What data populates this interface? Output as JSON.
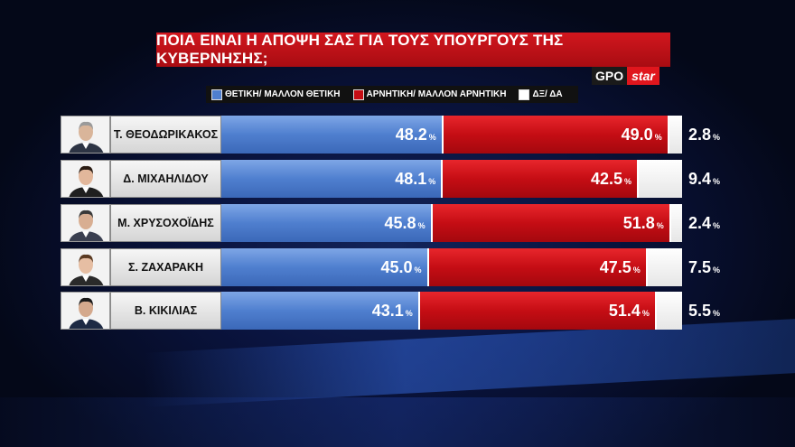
{
  "title": "ΠΟΙΑ ΕΙΝΑΙ Η ΑΠΟΨΗ ΣΑΣ ΓΙΑ ΤΟΥΣ ΥΠΟΥΡΓΟΥΣ ΤΗΣ ΚΥΒΕΡΝΗΣΗΣ;",
  "logo": {
    "left": "GPO",
    "right": "star"
  },
  "colors": {
    "positive": "#4f7fcf",
    "negative": "#c50d14",
    "dont_know": "#ffffff",
    "title_bg": "#d2171e"
  },
  "percent_sign": "%",
  "chart_data": {
    "type": "bar",
    "stacked": true,
    "orientation": "horizontal",
    "title": "ΠΟΙΑ ΕΙΝΑΙ Η ΑΠΟΨΗ ΣΑΣ ΓΙΑ ΤΟΥΣ ΥΠΟΥΡΓΟΥΣ ΤΗΣ ΚΥΒΕΡΝΗΣΗΣ;",
    "legend_position": "top",
    "categories": [
      "Τ. ΘΕΟΔΩΡΙΚΑΚΟΣ",
      "Δ. ΜΙΧΑΗΛΙΔΟΥ",
      "Μ. ΧΡΥΣΟΧΟΪΔΗΣ",
      "Σ. ΖΑΧΑΡΑΚΗ",
      "Β. ΚΙΚΙΛΙΑΣ"
    ],
    "series": [
      {
        "name": "ΘΕΤΙΚΗ/ ΜΑΛΛΟΝ ΘΕΤΙΚΗ",
        "key": "pos",
        "values": [
          48.2,
          48.1,
          45.8,
          45.0,
          43.1
        ]
      },
      {
        "name": "ΑΡΝΗΤΙΚΗ/ ΜΑΛΛΟΝ ΑΡΝΗΤΙΚΗ",
        "key": "neg",
        "values": [
          49.0,
          42.5,
          51.8,
          47.5,
          51.4
        ]
      },
      {
        "name": "ΔΞ/ ΔΑ",
        "key": "dk",
        "values": [
          2.8,
          9.4,
          2.4,
          7.5,
          5.5
        ]
      }
    ],
    "value_labels": {
      "pos": [
        "48.2",
        "48.1",
        "45.8",
        "45.0",
        "43.1"
      ],
      "neg": [
        "49.0",
        "42.5",
        "51.8",
        "47.5",
        "51.4"
      ],
      "dk": [
        "2.8",
        "9.4",
        "2.4",
        "7.5",
        "5.5"
      ]
    },
    "xlim": [
      0,
      100
    ],
    "grid": false
  }
}
